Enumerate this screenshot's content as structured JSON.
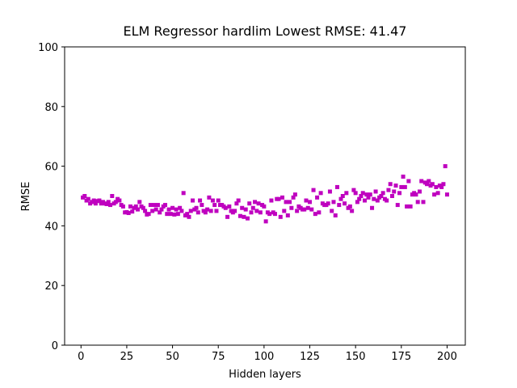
{
  "chart_data": {
    "type": "scatter",
    "title": "ELM Regressor hardlim Lowest RMSE: 41.47",
    "x_label": "Hidden layers",
    "y_label": "RMSE",
    "color": "#bf00bf",
    "marker": "square",
    "xlim": [
      -8.95,
      209.95
    ],
    "xticks": [
      0,
      25,
      50,
      75,
      100,
      125,
      150,
      175,
      200
    ],
    "ylim": [
      0,
      100
    ],
    "yticks": [
      0,
      20,
      40,
      60,
      80,
      100
    ],
    "x": [
      1,
      2,
      3,
      4,
      5,
      6,
      7,
      8,
      9,
      10,
      11,
      12,
      13,
      14,
      15,
      16,
      17,
      18,
      19,
      20,
      21,
      22,
      23,
      24,
      25,
      26,
      27,
      28,
      29,
      30,
      31,
      32,
      33,
      34,
      35,
      36,
      37,
      38,
      39,
      40,
      41,
      42,
      43,
      44,
      45,
      46,
      47,
      48,
      49,
      50,
      51,
      52,
      53,
      54,
      55,
      56,
      57,
      58,
      59,
      60,
      61,
      62,
      63,
      64,
      65,
      66,
      67,
      68,
      69,
      70,
      71,
      72,
      73,
      74,
      75,
      76,
      77,
      78,
      79,
      80,
      81,
      82,
      83,
      84,
      85,
      86,
      87,
      88,
      89,
      90,
      91,
      92,
      93,
      94,
      95,
      96,
      97,
      98,
      99,
      100,
      101,
      102,
      103,
      104,
      105,
      106,
      107,
      108,
      109,
      110,
      111,
      112,
      113,
      114,
      115,
      116,
      117,
      118,
      119,
      120,
      121,
      122,
      123,
      124,
      125,
      126,
      127,
      128,
      129,
      130,
      131,
      132,
      133,
      134,
      135,
      136,
      137,
      138,
      139,
      140,
      141,
      142,
      143,
      144,
      145,
      146,
      147,
      148,
      149,
      150,
      151,
      152,
      153,
      154,
      155,
      156,
      157,
      158,
      159,
      160,
      161,
      162,
      163,
      164,
      165,
      166,
      167,
      168,
      169,
      170,
      171,
      172,
      173,
      174,
      175,
      176,
      177,
      178,
      179,
      180,
      181,
      182,
      183,
      184,
      185,
      186,
      187,
      188,
      189,
      190,
      191,
      192,
      193,
      194,
      195,
      196,
      197,
      198,
      199,
      200
    ],
    "values": [
      49.5,
      50,
      48.5,
      49,
      47.5,
      48,
      48.5,
      47.5,
      48.3,
      48.5,
      47.5,
      48,
      47.5,
      47.3,
      48,
      47,
      50,
      47.5,
      48,
      49,
      48.5,
      47,
      46.5,
      44.5,
      44.6,
      44.3,
      46.5,
      44.8,
      46,
      46.5,
      45.5,
      48,
      46.5,
      46,
      45,
      43.8,
      44,
      47,
      45,
      47,
      45.5,
      47,
      44.5,
      45.5,
      46.5,
      47,
      44,
      45.5,
      44,
      46,
      43.8,
      45.5,
      44,
      46,
      45,
      51,
      43.5,
      44,
      43,
      45,
      48.5,
      45.5,
      46,
      44.5,
      48.5,
      47,
      45,
      44.5,
      45.5,
      49.5,
      45,
      48.5,
      47,
      45,
      48.5,
      47,
      47,
      46.5,
      46,
      43,
      46.5,
      45,
      44.5,
      45,
      47.5,
      48.5,
      43.3,
      46,
      43,
      45.5,
      42.5,
      47.5,
      44.5,
      46,
      48,
      45,
      47.5,
      44.5,
      47,
      46.5,
      41.5,
      44.5,
      44,
      48.5,
      44.5,
      44,
      49,
      49,
      43,
      49.5,
      45,
      48,
      43.5,
      48,
      46,
      49.5,
      50.5,
      45,
      46.5,
      46,
      45.5,
      45.5,
      48.5,
      46,
      48,
      45.5,
      52,
      44,
      49.5,
      44.5,
      51,
      47.5,
      47,
      47,
      47.5,
      51.5,
      45,
      48,
      43.5,
      53,
      47,
      49,
      50,
      47.5,
      51,
      46,
      46.5,
      45,
      52,
      51,
      48,
      49,
      50,
      51,
      48.5,
      50.5,
      49.5,
      50.5,
      46,
      49,
      51.5,
      48.5,
      49.5,
      50,
      51,
      49,
      48.5,
      52,
      54,
      50,
      51.5,
      53.5,
      47,
      51,
      53,
      56.5,
      53,
      46.5,
      55,
      46.5,
      50.5,
      51,
      50.5,
      48,
      51.5,
      55,
      48,
      54.5,
      54,
      55,
      53.5,
      54,
      50.5,
      53,
      51,
      53.5,
      53,
      54,
      60,
      50.5
    ]
  }
}
